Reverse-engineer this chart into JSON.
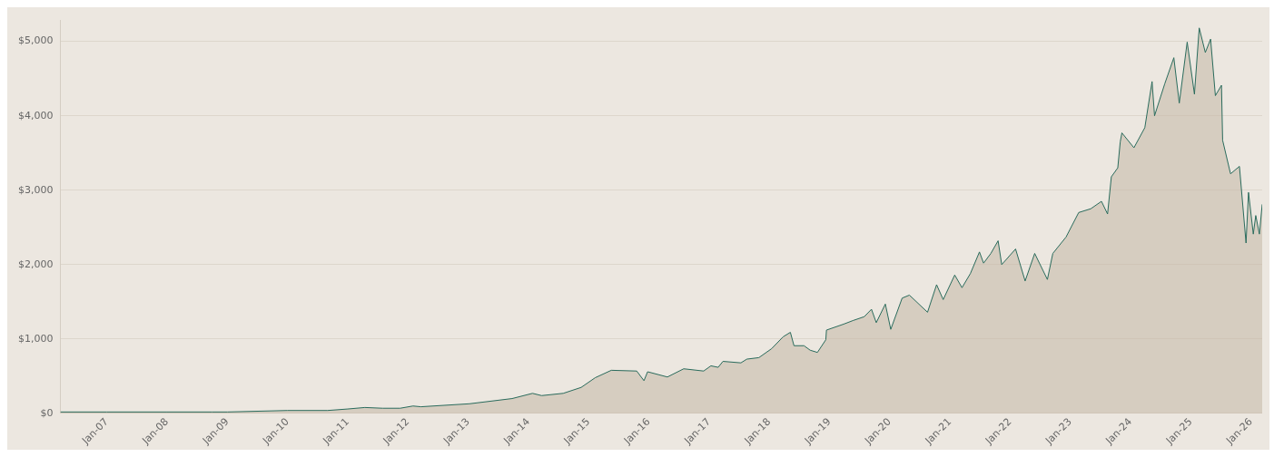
{
  "chart_data": {
    "type": "area",
    "x": [
      "2006-03-25",
      "2007-01-01",
      "2008-01-01",
      "2008-10-01",
      "2009-01-01",
      "2010-01-01",
      "2010-09-01",
      "2011-01-01",
      "2011-04-15",
      "2011-08-01",
      "2011-11-15",
      "2012-02-01",
      "2012-03-20",
      "2013-01-08",
      "2013-09-24",
      "2014-01-26",
      "2014-03-22",
      "2014-07-31",
      "2014-11-17",
      "2015-02-10",
      "2015-05-19",
      "2015-10-20",
      "2015-12-03",
      "2015-12-25",
      "2016-04-23",
      "2016-07-31",
      "2016-11-29",
      "2017-01-12",
      "2017-02-25",
      "2017-03-26",
      "2017-07-13",
      "2017-08-18",
      "2017-10-30",
      "2018-01-15",
      "2018-03-26",
      "2018-05-09",
      "2018-05-31",
      "2018-07-31",
      "2018-09-06",
      "2018-10-20",
      "2018-12-10",
      "2018-12-14",
      "2019-03-28",
      "2019-05-26",
      "2019-07-31",
      "2019-09-13",
      "2019-10-12",
      "2019-12-06",
      "2020-01-08",
      "2020-03-17",
      "2020-04-30",
      "2020-08-18",
      "2020-10-12",
      "2020-11-21",
      "2021-01-30",
      "2021-03-15",
      "2021-05-05",
      "2021-06-29",
      "2021-07-24",
      "2021-09-06",
      "2021-10-20",
      "2021-11-11",
      "2022-02-03",
      "2022-04-02",
      "2022-05-30",
      "2022-08-15",
      "2022-09-17",
      "2022-12-06",
      "2023-02-21",
      "2023-05-05",
      "2023-07-09",
      "2023-08-15",
      "2023-09-07",
      "2023-10-16",
      "2023-10-31",
      "2023-11-10",
      "2024-01-22",
      "2024-03-28",
      "2024-05-11",
      "2024-05-26",
      "2024-07-27",
      "2024-09-20",
      "2024-10-23",
      "2024-12-10",
      "2025-01-23",
      "2025-02-21",
      "2025-03-30",
      "2025-05-01",
      "2025-05-30",
      "2025-07-06",
      "2025-07-13",
      "2025-08-30",
      "2025-10-23",
      "2025-12-02",
      "2025-12-17",
      "2026-01-15",
      "2026-01-30",
      "2026-02-21",
      "2026-03-10"
    ],
    "series": [
      {
        "color": "#2a6b5c",
        "values": [
          20,
          20,
          20,
          20,
          20,
          40,
          40,
          60,
          80,
          70,
          70,
          100,
          90,
          130,
          200,
          270,
          240,
          270,
          350,
          480,
          580,
          570,
          440,
          560,
          490,
          600,
          570,
          640,
          620,
          700,
          680,
          730,
          750,
          870,
          1030,
          1090,
          910,
          910,
          850,
          820,
          990,
          1120,
          1200,
          1250,
          1300,
          1400,
          1220,
          1470,
          1130,
          1550,
          1590,
          1360,
          1730,
          1530,
          1860,
          1690,
          1880,
          2170,
          2020,
          2150,
          2320,
          2000,
          2210,
          1780,
          2150,
          1800,
          2150,
          2370,
          2700,
          2750,
          2850,
          2680,
          3180,
          3300,
          3650,
          3770,
          3570,
          3840,
          4460,
          4000,
          4430,
          4780,
          4170,
          4990,
          4290,
          5180,
          4850,
          5030,
          4270,
          4410,
          3670,
          3220,
          3320,
          2290,
          2970,
          2410,
          2660,
          2410,
          2810
        ]
      }
    ],
    "xlim": [
      "2006-03-25",
      "2026-03-10"
    ],
    "xticks": [
      {
        "value": "2007-01-01",
        "label": "Jan-07"
      },
      {
        "value": "2008-01-01",
        "label": "Jan-08"
      },
      {
        "value": "2009-01-01",
        "label": "Jan-09"
      },
      {
        "value": "2010-01-01",
        "label": "Jan-10"
      },
      {
        "value": "2011-01-01",
        "label": "Jan-11"
      },
      {
        "value": "2012-01-01",
        "label": "Jan-12"
      },
      {
        "value": "2013-01-01",
        "label": "Jan-13"
      },
      {
        "value": "2014-01-01",
        "label": "Jan-14"
      },
      {
        "value": "2015-01-01",
        "label": "Jan-15"
      },
      {
        "value": "2016-01-01",
        "label": "Jan-16"
      },
      {
        "value": "2017-01-01",
        "label": "Jan-17"
      },
      {
        "value": "2018-01-01",
        "label": "Jan-18"
      },
      {
        "value": "2019-01-01",
        "label": "Jan-19"
      },
      {
        "value": "2020-01-01",
        "label": "Jan-20"
      },
      {
        "value": "2021-01-01",
        "label": "Jan-21"
      },
      {
        "value": "2022-01-01",
        "label": "Jan-22"
      },
      {
        "value": "2023-01-01",
        "label": "Jan-23"
      },
      {
        "value": "2024-01-01",
        "label": "Jan-24"
      },
      {
        "value": "2025-01-01",
        "label": "Jan-25"
      },
      {
        "value": "2026-01-01",
        "label": "Jan-26"
      }
    ],
    "ylim": [
      0,
      5280
    ],
    "yticks": [
      {
        "value": 0,
        "label": "$0"
      },
      {
        "value": 1000,
        "label": "$1,000"
      },
      {
        "value": 2000,
        "label": "$2,000"
      },
      {
        "value": 3000,
        "label": "$3,000"
      },
      {
        "value": 4000,
        "label": "$4,000"
      },
      {
        "value": 5000,
        "label": "$5,000"
      }
    ],
    "grid": "y",
    "legend": false
  }
}
